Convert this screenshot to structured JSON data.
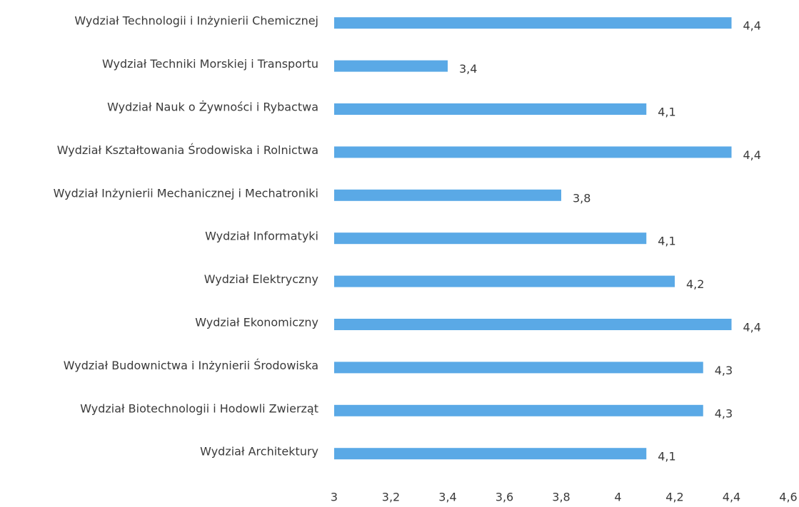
{
  "chart_data": {
    "type": "barh",
    "categories": [
      "Wydział Technologii i Inżynierii Chemicznej",
      "Wydział Techniki Morskiej i Transportu",
      "Wydział Nauk o Żywności i Rybactwa",
      "Wydział Kształtowania Środowiska i Rolnictwa",
      "Wydział Inżynierii Mechanicznej i Mechatroniki",
      "Wydział Informatyki",
      "Wydział Elektryczny",
      "Wydział Ekonomiczny",
      "Wydział Budownictwa i Inżynierii Środowiska",
      "Wydział Biotechnologii i Hodowli Zwierząt",
      "Wydział Architektury"
    ],
    "values": [
      4.4,
      3.4,
      4.1,
      4.4,
      3.8,
      4.1,
      4.2,
      4.4,
      4.3,
      4.3,
      4.1
    ],
    "value_labels": [
      "4,4",
      "3,4",
      "4,1",
      "4,4",
      "3,8",
      "4,1",
      "4,2",
      "4,4",
      "4,3",
      "4,3",
      "4,1"
    ],
    "color": "#5aa9e6",
    "xlim": [
      3,
      4.6
    ],
    "xticks": [
      3,
      {
        "value": 3.2,
        "label": "3,2"
      },
      {
        "value": 3.4,
        "label": "3,4"
      },
      {
        "value": 3.6,
        "label": "3,6"
      },
      {
        "value": 3.8,
        "label": "3,8"
      },
      4,
      {
        "value": 4.2,
        "label": "4,2"
      },
      {
        "value": 4.4,
        "label": "4,4"
      },
      {
        "value": 4.6,
        "label": "4,6"
      }
    ],
    "grid": false
  }
}
